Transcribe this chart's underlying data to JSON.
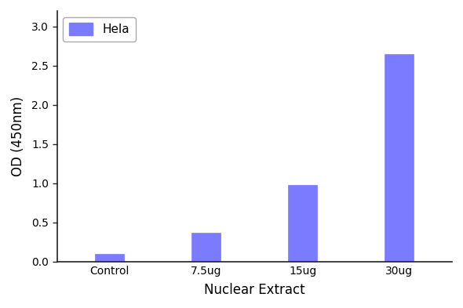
{
  "categories": [
    "Control",
    "7.5ug",
    "15ug",
    "30ug"
  ],
  "values": [
    0.1,
    0.37,
    0.98,
    2.65
  ],
  "bar_color": "#7b7bff",
  "xlabel": "Nuclear Extract",
  "ylabel": "OD (450nm)",
  "ylim": [
    0,
    3.2
  ],
  "yticks": [
    0.0,
    0.5,
    1.0,
    1.5,
    2.0,
    2.5,
    3.0
  ],
  "legend_label": "Hela",
  "bar_width": 0.3,
  "background_color": "#ffffff",
  "xlabel_fontsize": 12,
  "ylabel_fontsize": 12,
  "tick_fontsize": 10,
  "legend_fontsize": 11
}
